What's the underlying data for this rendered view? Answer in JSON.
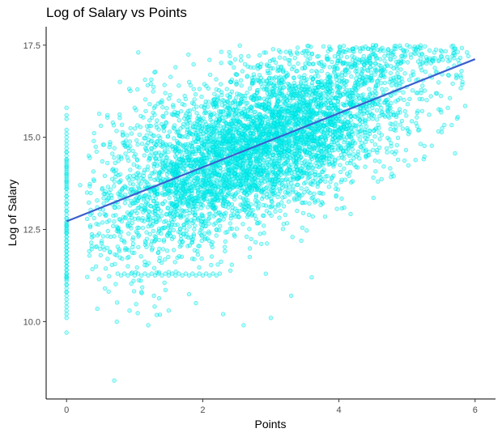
{
  "chart_data": {
    "type": "scatter",
    "title": "Log of Salary vs Points",
    "xlabel": "Points",
    "ylabel": "Log of Salary",
    "xlim": [
      -0.3,
      6.3
    ],
    "ylim": [
      7.9,
      18.0
    ],
    "x_ticks": [
      0,
      2,
      4,
      6
    ],
    "x_tick_labels": [
      "0",
      "2",
      "4",
      "6"
    ],
    "y_ticks": [
      10.0,
      12.5,
      15.0,
      17.5
    ],
    "y_tick_labels": [
      "10.0",
      "12.5",
      "15.0",
      "17.5"
    ],
    "grid": false,
    "legend": "none",
    "colors": {
      "points": "#00ffff",
      "points_stroke": "#00d5d5",
      "trend_line": "#3a5fcd",
      "axis": "#000000"
    },
    "point_opacity": 0.3,
    "trend_line": {
      "x": [
        0,
        6
      ],
      "y": [
        12.72,
        17.12
      ]
    },
    "series": [
      {
        "x": [
          0,
          0,
          0,
          0,
          0,
          0,
          0,
          0,
          0,
          0,
          0,
          0,
          0,
          0,
          0,
          0,
          0,
          0,
          0,
          0,
          0,
          0,
          0,
          0,
          0,
          0,
          0,
          0,
          0,
          0,
          0,
          0,
          0,
          0,
          0,
          0,
          0,
          0,
          0,
          0,
          0,
          0,
          0,
          0,
          0,
          0,
          0,
          0,
          0,
          0,
          0,
          0,
          0,
          0,
          0,
          0,
          0,
          0,
          0,
          0,
          0,
          0,
          0,
          0,
          0,
          0,
          0,
          0,
          0,
          0,
          0,
          0,
          0,
          0,
          0,
          0,
          0,
          0,
          0,
          0,
          0,
          0,
          0,
          0,
          0,
          0,
          0,
          0,
          0,
          0,
          0,
          0,
          0,
          0,
          0,
          0,
          0,
          0,
          0,
          0
        ],
        "y": [
          15.8,
          15.6,
          15.5,
          15.2,
          15.1,
          14.9,
          14.7,
          14.6,
          14.5,
          14.4,
          14.3,
          14.2,
          14.1,
          14.0,
          13.9,
          13.8,
          13.7,
          13.6,
          13.5,
          13.4,
          13.3,
          13.2,
          13.1,
          13.0,
          12.9,
          12.8,
          12.7,
          12.6,
          12.5,
          12.4,
          12.3,
          12.2,
          12.1,
          12.0,
          11.9,
          11.8,
          11.7,
          11.6,
          11.5,
          11.4,
          11.3,
          11.2,
          11.1,
          11.0,
          10.9,
          10.8,
          10.7,
          10.6,
          10.5,
          10.4,
          10.3,
          10.2,
          10.1,
          9.7,
          15.0,
          14.8,
          14.6,
          14.4,
          14.2,
          14.0,
          13.8,
          13.6,
          13.4,
          13.2,
          13.0,
          12.8,
          12.6,
          12.4,
          12.2,
          12.0,
          11.8,
          11.6,
          11.4,
          11.2,
          11.0,
          10.8,
          12.7,
          12.65,
          12.6,
          12.55,
          12.5,
          12.45,
          12.4,
          11.3,
          11.25,
          11.2,
          11.15,
          12.3,
          12.1,
          11.9,
          11.7,
          11.5,
          14.35,
          14.25,
          14.15,
          14.05,
          13.95,
          13.85,
          13.75,
          13.65
        ]
      },
      {
        "x": [
          0.8,
          0.9,
          1.0,
          1.1,
          1.2,
          1.3,
          1.4,
          1.5,
          1.6,
          1.7,
          1.8,
          1.9,
          2.0,
          2.1,
          2.2,
          0.75,
          0.85,
          0.95,
          1.05,
          1.15,
          1.25,
          1.35,
          1.45,
          1.55,
          1.65,
          1.75,
          1.85,
          1.95,
          2.05,
          2.15,
          2.25
        ],
        "y": [
          11.25,
          11.25,
          11.25,
          11.25,
          11.25,
          11.25,
          11.25,
          11.25,
          11.25,
          11.25,
          11.25,
          11.25,
          11.25,
          11.25,
          11.25,
          11.3,
          11.3,
          11.3,
          11.3,
          11.3,
          11.3,
          11.3,
          11.3,
          11.3,
          11.3,
          11.3,
          11.3,
          11.3,
          11.3,
          11.3,
          11.3
        ]
      },
      {
        "x": [
          0.7,
          1.2,
          1.5,
          1.9,
          2.3,
          2.6,
          3.0,
          3.3,
          3.6,
          0.3,
          0.4,
          0.5,
          0.6,
          0.9,
          1.1,
          1.3,
          1.6,
          1.8,
          2.1,
          2.4,
          2.7,
          2.9,
          3.1,
          3.4,
          3.7,
          4.0,
          4.2,
          4.5,
          4.8,
          5.1,
          5.4,
          5.7,
          5.9,
          0.2,
          0.35,
          0.45,
          0.55,
          0.65,
          1.4,
          1.7,
          2.2,
          2.5,
          2.8,
          3.2,
          3.5,
          3.8,
          4.1,
          4.3,
          4.6,
          4.9,
          5.2,
          5.5,
          5.8,
          0.6,
          1.0,
          1.45,
          2.0,
          2.45,
          2.9,
          3.35,
          3.8,
          4.25,
          4.7,
          5.15,
          5.6
        ],
        "y": [
          8.4,
          9.9,
          10.3,
          10.5,
          10.2,
          9.9,
          10.1,
          10.7,
          11.2,
          13.5,
          14.9,
          11.8,
          14.3,
          11.5,
          10.8,
          12.2,
          16.9,
          16.5,
          17.1,
          17.2,
          16.9,
          17.3,
          16.8,
          17.0,
          17.2,
          17.3,
          17.4,
          17.5,
          17.3,
          17.4,
          17.3,
          17.4,
          17.2,
          13.7,
          12.9,
          13.1,
          14.8,
          12.3,
          16.0,
          15.9,
          16.3,
          16.7,
          16.2,
          16.6,
          16.9,
          16.4,
          16.8,
          17.1,
          16.6,
          17.0,
          16.9,
          17.2,
          16.8,
          15.6,
          15.8,
          16.2,
          12.6,
          12.9,
          12.4,
          13.3,
          13.8,
          14.2,
          14.7,
          15.3,
          15.8
        ]
      }
    ],
    "cloud": {
      "description_free": true,
      "n_points": 5200,
      "x_range": [
        0.3,
        5.9
      ],
      "intercept": 12.72,
      "slope": 0.733,
      "spread": 1.05
    }
  }
}
